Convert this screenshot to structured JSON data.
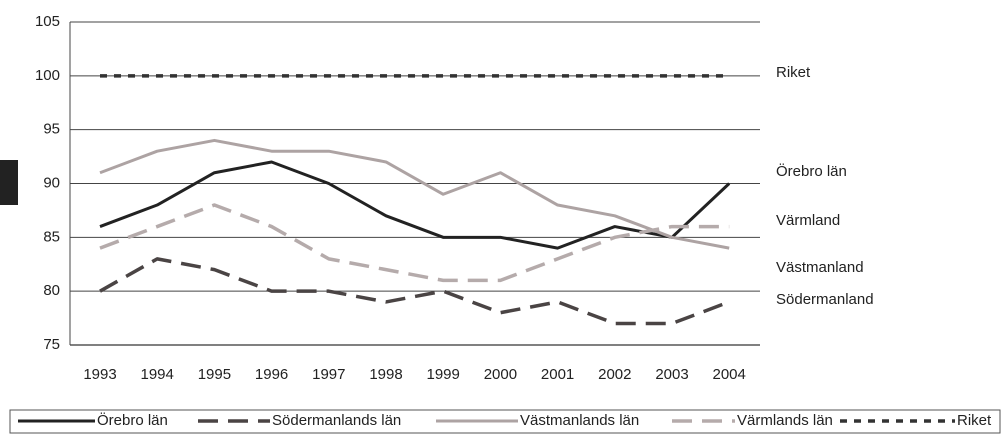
{
  "chart_data": {
    "type": "line",
    "categories": [
      "1993",
      "1994",
      "1995",
      "1996",
      "1997",
      "1998",
      "1999",
      "2000",
      "2001",
      "2002",
      "2003",
      "2004"
    ],
    "series": [
      {
        "name": "Örebro län",
        "color": "#222222",
        "style": "solid",
        "values": [
          86,
          88,
          91,
          92,
          90,
          87,
          85,
          85,
          84,
          86,
          85,
          90
        ]
      },
      {
        "name": "Södermanlands län",
        "color": "#4a4444",
        "style": "dashed",
        "values": [
          80,
          83,
          82,
          80,
          80,
          79,
          80,
          78,
          79,
          77,
          77,
          79
        ]
      },
      {
        "name": "Västmanlands län",
        "color": "#ad a3a3",
        "style": "solid",
        "values": [
          91,
          93,
          94,
          93,
          93,
          92,
          89,
          91,
          88,
          87,
          85,
          84
        ]
      },
      {
        "name": "Värmlands län",
        "color": "#b5abab",
        "style": "dashed",
        "values": [
          84,
          86,
          88,
          86,
          83,
          82,
          81,
          81,
          83,
          85,
          86,
          86
        ]
      },
      {
        "name": "Riket",
        "color": "#333333",
        "style": "dotted",
        "values": [
          100,
          100,
          100,
          100,
          100,
          100,
          100,
          100,
          100,
          100,
          100,
          100
        ]
      }
    ],
    "annotations": [
      "Riket",
      "Örebro län",
      "Värmland",
      "Västmanland",
      "Södermanland"
    ],
    "ylim": [
      75,
      105
    ],
    "yticks": [
      75,
      80,
      85,
      90,
      95,
      100,
      105
    ],
    "grid": true,
    "legend": "bottom"
  }
}
